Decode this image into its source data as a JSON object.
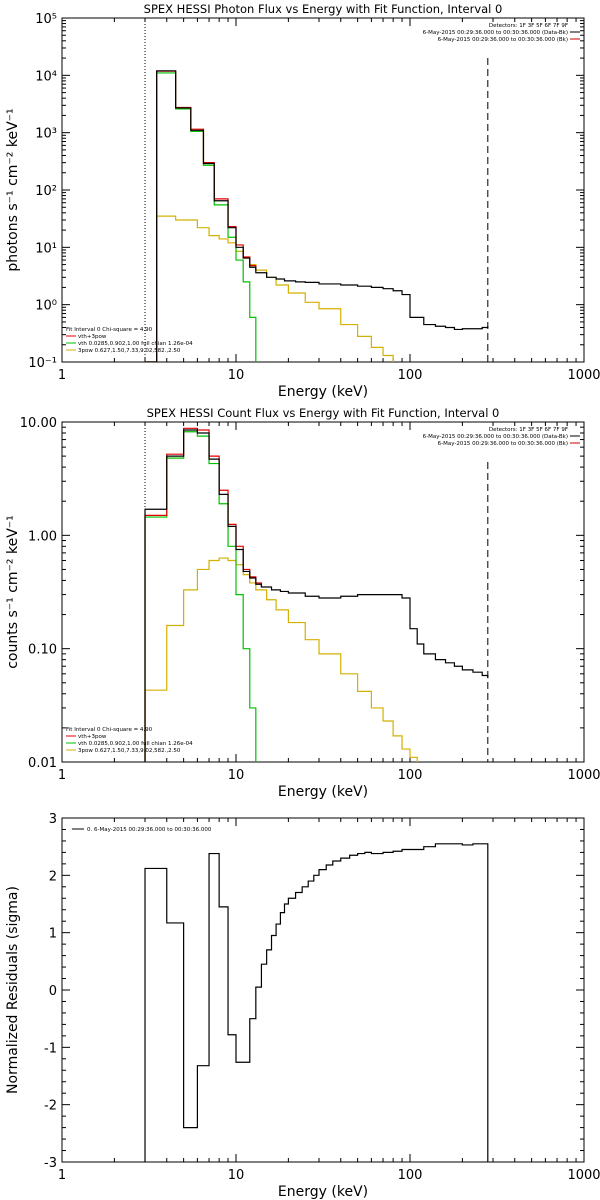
{
  "chart_data": [
    {
      "type": "line",
      "title": "SPEX HESSI Photon Flux vs Energy with Fit Function, Interval 0",
      "xlabel": "Energy (keV)",
      "ylabel": "photons s⁻¹ cm⁻² keV⁻¹",
      "xscale": "log",
      "yscale": "log",
      "xlim": [
        1,
        1000
      ],
      "ylim": [
        0.1,
        100000
      ],
      "x_ticks": [
        "1",
        "10",
        "100",
        "1000"
      ],
      "y_ticks": [
        "10⁻¹",
        "10⁰",
        "10¹",
        "10²",
        "10³",
        "10⁴",
        "10⁵"
      ],
      "ref_lines": {
        "dotted": 3,
        "dashed": 280
      },
      "legend_top": [
        {
          "label": "Detectors: 1F 3F 5F 6F 7F 9F",
          "color": "#000000"
        },
        {
          "label": "6-May-2015 00:29:36.000 to 00:30:36.000 (Data-Bk)",
          "color": "#000000"
        },
        {
          "label": "6-May-2015 00:29:36.000 to 00:30:36.000 (Bk)",
          "color": "#cc0000"
        }
      ],
      "legend_bottom": [
        {
          "label": "Fit Interval 0   Chi-square = 4.90",
          "color": "#000000"
        },
        {
          "label": "vth+3pow",
          "color": "#e00000"
        },
        {
          "label": "vth 0.0285,0.902,1.00  full chian 1.26e-04",
          "color": "#00c000"
        },
        {
          "label": "3pow 0.627,1.50,7.33,9.02,582.,2.50",
          "color": "#d4b000"
        }
      ],
      "series": [
        {
          "name": "Data-Bk",
          "color": "#000000",
          "x": [
            3,
            3.5,
            4,
            4.5,
            5,
            5.5,
            6,
            6.5,
            7,
            7.5,
            8,
            9,
            10,
            11,
            12,
            13,
            15,
            17,
            19,
            22,
            25,
            30,
            40,
            50,
            60,
            70,
            80,
            90,
            100,
            120,
            140,
            160,
            180,
            200,
            230,
            260,
            280
          ],
          "y": [
            0.1,
            12000,
            12000,
            2700,
            2700,
            1100,
            1100,
            290,
            290,
            65,
            65,
            22,
            10,
            6.5,
            4.5,
            3.6,
            3.0,
            2.8,
            2.6,
            2.5,
            2.45,
            2.3,
            2.2,
            2.1,
            2.0,
            1.9,
            1.75,
            1.5,
            0.6,
            0.45,
            0.42,
            0.4,
            0.37,
            0.38,
            0.38,
            0.4,
            0.42
          ]
        },
        {
          "name": "vth+3pow",
          "color": "#e00000",
          "x": [
            3,
            3.5,
            4,
            4.5,
            5,
            5.5,
            6,
            6.5,
            7,
            7.5,
            8,
            9,
            10,
            11,
            12,
            13
          ],
          "y": [
            0.1,
            11800,
            11800,
            2750,
            2750,
            1150,
            1150,
            300,
            300,
            70,
            70,
            23,
            11,
            6.8,
            4.8,
            3.9
          ]
        },
        {
          "name": "vth",
          "color": "#00c000",
          "x": [
            3,
            3.5,
            4,
            4.5,
            5,
            5.5,
            6,
            6.5,
            7,
            7.5,
            8,
            9,
            10,
            11,
            12,
            13
          ],
          "y": [
            0.1,
            11000,
            11000,
            2600,
            2600,
            1050,
            1050,
            270,
            270,
            55,
            55,
            15,
            6,
            2.5,
            0.6,
            0.1
          ]
        },
        {
          "name": "3pow",
          "color": "#d4b000",
          "x": [
            3,
            3.5,
            4,
            4.5,
            5,
            6,
            7,
            8,
            9,
            10,
            11,
            12,
            13,
            15,
            17,
            20,
            25,
            30,
            40,
            50,
            60,
            70,
            80
          ],
          "y": [
            0.1,
            35,
            35,
            30,
            30,
            22,
            16,
            14,
            12,
            8.5,
            6.5,
            5.0,
            4.0,
            3.0,
            2.2,
            1.6,
            1.1,
            0.85,
            0.45,
            0.28,
            0.18,
            0.13,
            0.1
          ]
        }
      ]
    },
    {
      "type": "line",
      "title": "SPEX HESSI Count Flux vs Energy with Fit Function, Interval 0",
      "xlabel": "Energy (keV)",
      "ylabel": "counts s⁻¹ cm⁻² keV⁻¹",
      "xscale": "log",
      "yscale": "log",
      "xlim": [
        1,
        1000
      ],
      "ylim": [
        0.01,
        10
      ],
      "x_ticks": [
        "1",
        "10",
        "100",
        "1000"
      ],
      "y_ticks": [
        "0.01",
        "0.10",
        "1.00",
        "10.00"
      ],
      "ref_lines": {
        "dotted": 3,
        "dashed": 280
      },
      "legend_top": [
        {
          "label": "Detectors: 1F 3F 5F 6F 7F 9F",
          "color": "#000000"
        },
        {
          "label": "6-May-2015 00:29:36.000 to 00:30:36.000 (Data-Bk)",
          "color": "#000000"
        },
        {
          "label": "6-May-2015 00:29:36.000 to 00:30:36.000 (Bk)",
          "color": "#cc0000"
        }
      ],
      "legend_bottom": [
        {
          "label": "Fit Interval 0   Chi-square = 4.90",
          "color": "#000000"
        },
        {
          "label": "vth+3pow",
          "color": "#e00000"
        },
        {
          "label": "vth 0.0285,0.902,1.00  full chian 1.26e-04",
          "color": "#00c000"
        },
        {
          "label": "3pow 0.627,1.50,7.33,9.02,582.,2.50",
          "color": "#d4b000"
        }
      ],
      "series": [
        {
          "name": "Data-Bk",
          "color": "#000000",
          "x": [
            3,
            4,
            5,
            6,
            7,
            8,
            9,
            10,
            11,
            12,
            13,
            14,
            16,
            18,
            20,
            25,
            30,
            40,
            50,
            60,
            70,
            80,
            90,
            100,
            110,
            120,
            140,
            160,
            180,
            200,
            230,
            260,
            280
          ],
          "y": [
            1.7,
            5.0,
            8.5,
            8.0,
            4.7,
            2.3,
            1.2,
            0.75,
            0.48,
            0.42,
            0.37,
            0.35,
            0.33,
            0.32,
            0.31,
            0.29,
            0.28,
            0.29,
            0.3,
            0.3,
            0.3,
            0.3,
            0.28,
            0.15,
            0.11,
            0.09,
            0.08,
            0.075,
            0.07,
            0.065,
            0.062,
            0.058,
            0.055
          ]
        },
        {
          "name": "vth+3pow",
          "color": "#e00000",
          "x": [
            3,
            4,
            5,
            6,
            7,
            8,
            9,
            10,
            11,
            12,
            13,
            14
          ],
          "y": [
            1.5,
            5.2,
            8.8,
            8.5,
            5.0,
            2.5,
            1.25,
            0.8,
            0.5,
            0.43,
            0.38,
            0.35
          ]
        },
        {
          "name": "vth",
          "color": "#00c000",
          "x": [
            3,
            4,
            5,
            6,
            7,
            8,
            9,
            10,
            11,
            12,
            13
          ],
          "y": [
            1.45,
            4.8,
            8.2,
            7.5,
            4.3,
            1.9,
            0.8,
            0.3,
            0.1,
            0.03,
            0.01
          ]
        },
        {
          "name": "3pow",
          "color": "#d4b000",
          "x": [
            3,
            4,
            5,
            6,
            7,
            8,
            9,
            10,
            11,
            12,
            13,
            15,
            17,
            20,
            25,
            30,
            40,
            50,
            60,
            70,
            80,
            90,
            100,
            110
          ],
          "y": [
            0.043,
            0.16,
            0.33,
            0.5,
            0.6,
            0.63,
            0.6,
            0.55,
            0.45,
            0.38,
            0.33,
            0.27,
            0.22,
            0.17,
            0.12,
            0.09,
            0.06,
            0.042,
            0.03,
            0.023,
            0.017,
            0.013,
            0.011,
            0.01
          ]
        }
      ]
    },
    {
      "type": "line",
      "title": "",
      "xlabel": "Energy (keV)",
      "ylabel": "Normalized Residuals (sigma)",
      "xscale": "log",
      "yscale": "linear",
      "xlim": [
        1,
        1000
      ],
      "ylim": [
        -3,
        3
      ],
      "x_ticks": [
        "1",
        "10",
        "100",
        "1000"
      ],
      "y_ticks": [
        "-3",
        "-2",
        "-1",
        "0",
        "1",
        "2",
        "3"
      ],
      "legend_top": [
        {
          "label": "0. 6-May-2015 00:29:36.000 to 00:30:36.000",
          "color": "#000000"
        }
      ],
      "series": [
        {
          "name": "0. 6-May-2015 00:29:36.000 to 00:30:36.000",
          "color": "#000000",
          "x": [
            3,
            4,
            5,
            6,
            7,
            8,
            9,
            10,
            11,
            12,
            13,
            14,
            15,
            16,
            17,
            18,
            19,
            20,
            22,
            24,
            26,
            28,
            30,
            33,
            36,
            40,
            45,
            50,
            55,
            60,
            70,
            80,
            90,
            100,
            120,
            140,
            160,
            180,
            200,
            230,
            260,
            280
          ],
          "y": [
            2.12,
            1.17,
            -2.4,
            -1.32,
            2.38,
            1.45,
            -0.78,
            -1.26,
            -1.26,
            -0.5,
            0.05,
            0.45,
            0.7,
            0.95,
            1.15,
            1.35,
            1.5,
            1.6,
            1.7,
            1.8,
            1.9,
            2.0,
            2.1,
            2.18,
            2.25,
            2.3,
            2.35,
            2.38,
            2.4,
            2.38,
            2.4,
            2.42,
            2.45,
            2.45,
            2.5,
            2.55,
            2.55,
            2.55,
            2.53,
            2.55,
            2.55,
            2.55
          ]
        }
      ]
    }
  ]
}
